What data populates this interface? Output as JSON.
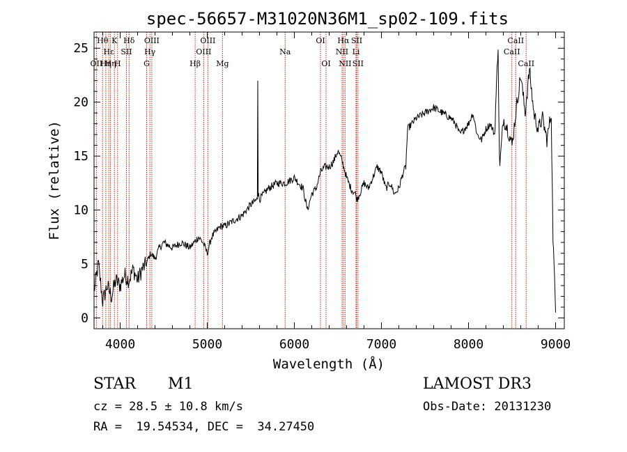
{
  "colors": {
    "axis": "#000000",
    "spectrum": "#000000",
    "line_marker": "#cc2200"
  },
  "chart_data": {
    "type": "line",
    "title": "spec-56657-M31020N36M1_sp02-109.fits",
    "xlabel": "Wavelength (Å)",
    "ylabel": "Flux (relative)",
    "xlim": [
      3700,
      9100
    ],
    "ylim": [
      -1.0,
      26.5
    ],
    "xticks": [
      4000,
      5000,
      6000,
      7000,
      8000,
      9000
    ],
    "xtick_labels": [
      "4000",
      "5000",
      "6000",
      "7000",
      "8000",
      "9000"
    ],
    "yticks": [
      0,
      5,
      10,
      15,
      20,
      25
    ],
    "ytick_labels": [
      "0",
      "5",
      "10",
      "15",
      "20",
      "25"
    ],
    "series": [
      {
        "name": "flux",
        "x": [
          3700,
          3750,
          3800,
          3850,
          3900,
          3950,
          4000,
          4050,
          4100,
          4150,
          4200,
          4250,
          4300,
          4350,
          4400,
          4450,
          4500,
          4600,
          4700,
          4800,
          4850,
          4900,
          4950,
          5000,
          5050,
          5100,
          5150,
          5200,
          5300,
          5400,
          5500,
          5575,
          5580,
          5585,
          5600,
          5700,
          5800,
          5900,
          6000,
          6100,
          6150,
          6200,
          6250,
          6300,
          6350,
          6400,
          6450,
          6500,
          6550,
          6600,
          6650,
          6700,
          6720,
          6750,
          6800,
          6850,
          6900,
          6950,
          7000,
          7050,
          7100,
          7150,
          7200,
          7250,
          7280,
          7300,
          7400,
          7500,
          7600,
          7700,
          7800,
          7850,
          7900,
          8000,
          8050,
          8100,
          8150,
          8200,
          8250,
          8300,
          8340,
          8350,
          8360,
          8400,
          8450,
          8500,
          8550,
          8600,
          8650,
          8700,
          8750,
          8800,
          8850,
          8900,
          8950,
          8970,
          9000
        ],
        "values": [
          2.5,
          5.0,
          1.5,
          3.0,
          2.0,
          3.5,
          3.0,
          4.0,
          3.5,
          4.5,
          3.5,
          4.5,
          5.0,
          6.0,
          5.5,
          6.5,
          7.0,
          6.5,
          7.0,
          6.5,
          7.0,
          7.5,
          7.0,
          6.0,
          7.5,
          8.0,
          8.5,
          8.5,
          9.0,
          9.5,
          10.5,
          11.0,
          22.0,
          11.5,
          11.0,
          12.0,
          12.5,
          12.5,
          13.0,
          12.0,
          10.0,
          11.5,
          12.0,
          13.5,
          14.0,
          14.0,
          14.5,
          15.5,
          14.5,
          13.0,
          12.0,
          11.5,
          11.0,
          11.5,
          12.5,
          12.0,
          13.0,
          14.0,
          13.5,
          12.0,
          12.5,
          11.5,
          12.0,
          13.5,
          14.0,
          17.5,
          18.5,
          19.0,
          19.5,
          19.0,
          18.5,
          18.0,
          17.0,
          18.0,
          19.0,
          17.0,
          16.5,
          17.5,
          18.0,
          17.0,
          25.5,
          17.0,
          14.0,
          18.5,
          17.5,
          16.0,
          19.5,
          22.5,
          19.0,
          23.0,
          19.0,
          17.5,
          18.5,
          16.5,
          19.0,
          7.5,
          0.5
        ]
      }
    ],
    "emission_lines": [
      {
        "wavelength": 3727,
        "label": "OII",
        "row": 3
      },
      {
        "wavelength": 3798,
        "label": "Hθ",
        "row": 1
      },
      {
        "wavelength": 3835,
        "label": "Hη",
        "row": 3
      },
      {
        "wavelength": 3869,
        "label": "Hε",
        "row": 2
      },
      {
        "wavelength": 3889,
        "label": "Hη",
        "row": 3
      },
      {
        "wavelength": 3934,
        "label": "K",
        "row": 1
      },
      {
        "wavelength": 3970,
        "label": "H",
        "row": 3
      },
      {
        "wavelength": 4072,
        "label": "SII",
        "row": 2
      },
      {
        "wavelength": 4102,
        "label": "Hδ",
        "row": 1
      },
      {
        "wavelength": 4304,
        "label": "G",
        "row": 3
      },
      {
        "wavelength": 4341,
        "label": "Hγ",
        "row": 2
      },
      {
        "wavelength": 4363,
        "label": "OIII",
        "row": 1
      },
      {
        "wavelength": 4861,
        "label": "Hβ",
        "row": 3
      },
      {
        "wavelength": 4959,
        "label": "OIII",
        "row": 2
      },
      {
        "wavelength": 5007,
        "label": "OIII",
        "row": 1
      },
      {
        "wavelength": 5175,
        "label": "Mg",
        "row": 3
      },
      {
        "wavelength": 5894,
        "label": "Na",
        "row": 2
      },
      {
        "wavelength": 6300,
        "label": "OI",
        "row": 1
      },
      {
        "wavelength": 6364,
        "label": "OI",
        "row": 3
      },
      {
        "wavelength": 6548,
        "label": "NII",
        "row": 2
      },
      {
        "wavelength": 6563,
        "label": "Hα",
        "row": 1
      },
      {
        "wavelength": 6583,
        "label": "NII",
        "row": 3
      },
      {
        "wavelength": 6708,
        "label": "Li",
        "row": 2
      },
      {
        "wavelength": 6716,
        "label": "SII",
        "row": 1
      },
      {
        "wavelength": 6731,
        "label": "SII",
        "row": 3
      },
      {
        "wavelength": 8498,
        "label": "CaII",
        "row": 2
      },
      {
        "wavelength": 8542,
        "label": "CaII",
        "row": 1
      },
      {
        "wavelength": 8662,
        "label": "CaII",
        "row": 3
      }
    ]
  },
  "info": {
    "class": "STAR",
    "subclass": "M1",
    "survey": "LAMOST DR3",
    "cz": "cz = 28.5 ± 10.8 km/s",
    "obs_date": "Obs-Date: 20131230",
    "radec": "RA =  19.54534, DEC =  34.27450"
  }
}
